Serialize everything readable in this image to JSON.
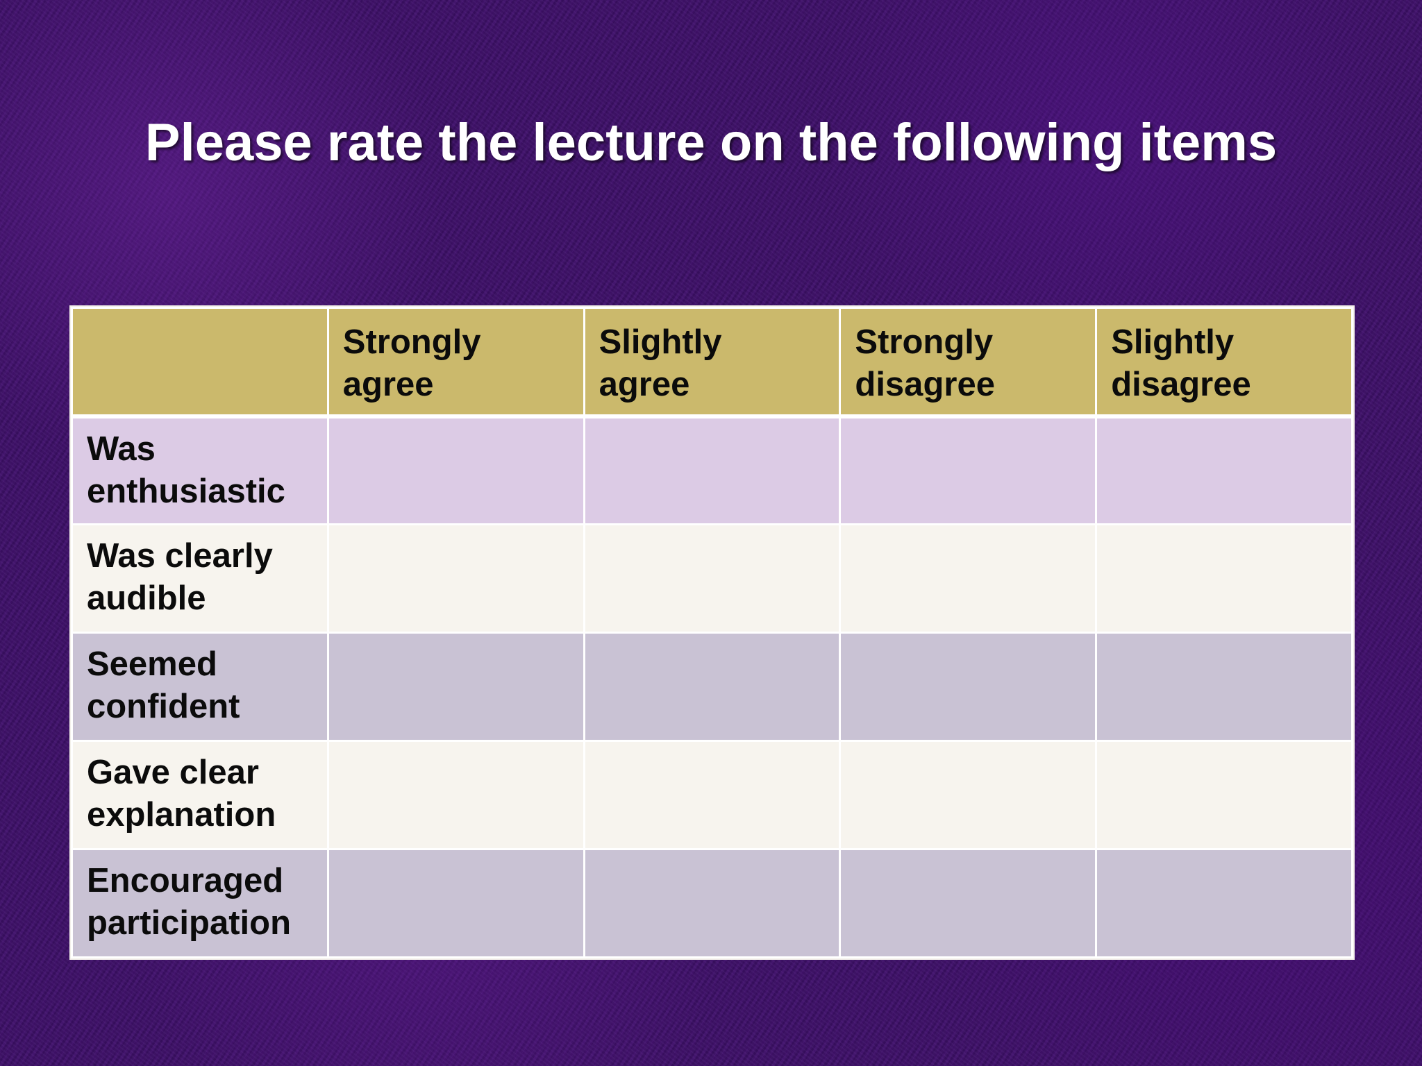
{
  "slide": {
    "title": "Please rate the lecture on the following items"
  },
  "table": {
    "corner": "",
    "columns": [
      {
        "line1": "Strongly",
        "line2": "agree"
      },
      {
        "line1": "Slightly",
        "line2": "agree"
      },
      {
        "line1": "Strongly",
        "line2": "disagree"
      },
      {
        "line1": "Slightly",
        "line2": "disagree"
      }
    ],
    "rows": [
      {
        "line1": "Was",
        "line2": "enthusiastic"
      },
      {
        "line1": "Was clearly",
        "line2": "audible"
      },
      {
        "line1": "Seemed",
        "line2": "confident"
      },
      {
        "line1": "Gave clear",
        "line2": "explanation"
      },
      {
        "line1": "Encouraged",
        "line2": "participation"
      }
    ]
  },
  "colors": {
    "background": "#3d0f68",
    "header_fill": "#cbb96c",
    "row_lavender": "#dccbe5",
    "row_cream": "#f7f4ee",
    "row_gray_violet": "#c9c2d4"
  }
}
